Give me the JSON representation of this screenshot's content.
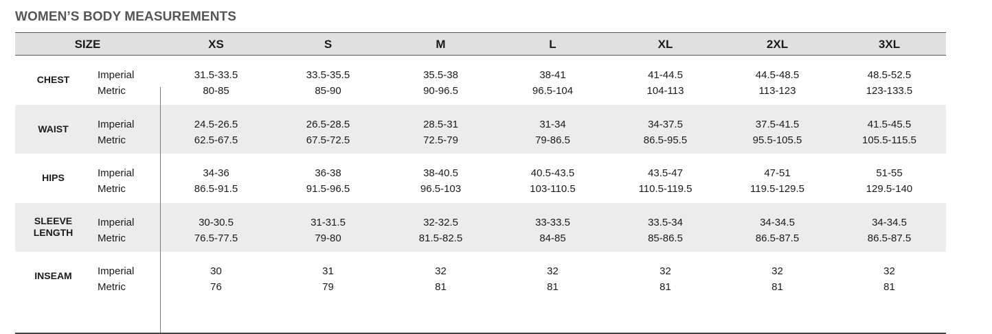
{
  "title": "WOMEN’S BODY MEASUREMENTS",
  "header": {
    "size_label": "SIZE",
    "sizes": [
      "XS",
      "S",
      "M",
      "L",
      "XL",
      "2XL",
      "3XL"
    ]
  },
  "unit_labels": [
    "Imperial",
    "Metric"
  ],
  "rows": [
    {
      "label": "CHEST",
      "imperial": [
        "31.5-33.5",
        "33.5-35.5",
        "35.5-38",
        "38-41",
        "41-44.5",
        "44.5-48.5",
        "48.5-52.5"
      ],
      "metric": [
        "80-85",
        "85-90",
        "90-96.5",
        "96.5-104",
        "104-113",
        "113-123",
        "123-133.5"
      ]
    },
    {
      "label": "WAIST",
      "imperial": [
        "24.5-26.5",
        "26.5-28.5",
        "28.5-31",
        "31-34",
        "34-37.5",
        "37.5-41.5",
        "41.5-45.5"
      ],
      "metric": [
        "62.5-67.5",
        "67.5-72.5",
        "72.5-79",
        "79-86.5",
        "86.5-95.5",
        "95.5-105.5",
        "105.5-115.5"
      ]
    },
    {
      "label": "HIPS",
      "imperial": [
        "34-36",
        "36-38",
        "38-40.5",
        "40.5-43.5",
        "43.5-47",
        "47-51",
        "51-55"
      ],
      "metric": [
        "86.5-91.5",
        "91.5-96.5",
        "96.5-103",
        "103-110.5",
        "110.5-119.5",
        "119.5-129.5",
        "129.5-140"
      ]
    },
    {
      "label": "SLEEVE\nLENGTH",
      "imperial": [
        "30-30.5",
        "31-31.5",
        "32-32.5",
        "33-33.5",
        "33.5-34",
        "34-34.5",
        "34-34.5"
      ],
      "metric": [
        "76.5-77.5",
        "79-80",
        "81.5-82.5",
        "84-85",
        "85-86.5",
        "86.5-87.5",
        "86.5-87.5"
      ]
    },
    {
      "label": "INSEAM",
      "imperial": [
        "30",
        "31",
        "32",
        "32",
        "32",
        "32",
        "32"
      ],
      "metric": [
        "76",
        "79",
        "81",
        "81",
        "81",
        "81",
        "81"
      ]
    }
  ]
}
